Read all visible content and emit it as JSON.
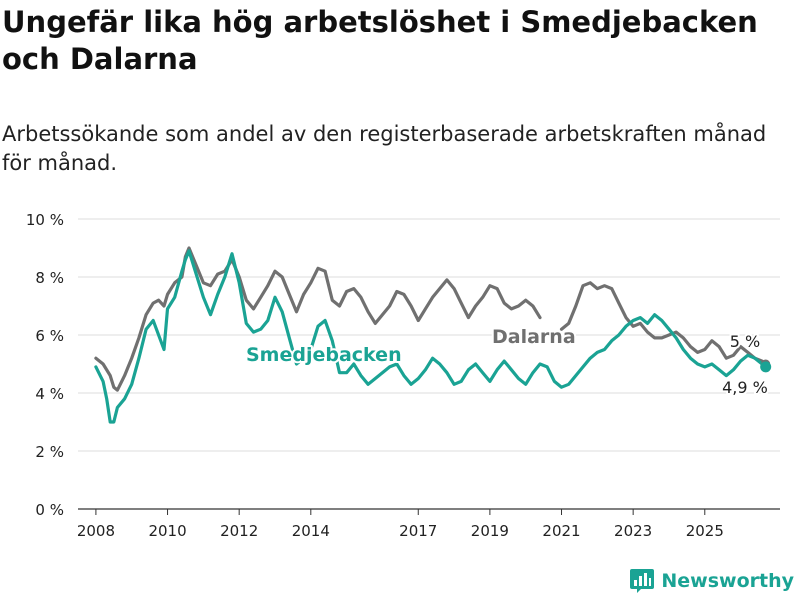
{
  "title": "Ungefär lika hög arbetslöshet i Smedjebacken och Dalarna",
  "subtitle": "Arbetssökande som andel av den registerbaserade arbetskraften månad för månad.",
  "brand": "Newsworthy",
  "colors": {
    "smedjebacken": "#1aa394",
    "dalarna": "#707070",
    "grid": "#dddddd",
    "text": "#222222",
    "brand": "#1aa394"
  },
  "chart_data": {
    "type": "line",
    "title": "Ungefär lika hög arbetslöshet i Smedjebacken och Dalarna",
    "xlabel": "",
    "ylabel": "",
    "ylim": [
      0,
      10
    ],
    "y_ticks": [
      0,
      2,
      4,
      6,
      8,
      10
    ],
    "y_tick_labels": [
      "0 %",
      "2 %",
      "4 %",
      "6 %",
      "8 %",
      "10 %"
    ],
    "x_ticks": [
      2008,
      2010,
      2012,
      2014,
      2017,
      2019,
      2021,
      2023,
      2025
    ],
    "x_tick_labels": [
      "2008",
      "2010",
      "2012",
      "2014",
      "2017",
      "2019",
      "2021",
      "2023",
      "2025"
    ],
    "grid": true,
    "legend": "inline labels",
    "series": [
      {
        "name": "Dalarna",
        "end_label": "5 %",
        "points": [
          [
            2008.0,
            5.2
          ],
          [
            2008.2,
            5.0
          ],
          [
            2008.4,
            4.6
          ],
          [
            2008.5,
            4.2
          ],
          [
            2008.6,
            4.1
          ],
          [
            2008.8,
            4.6
          ],
          [
            2009.0,
            5.2
          ],
          [
            2009.2,
            5.9
          ],
          [
            2009.4,
            6.7
          ],
          [
            2009.6,
            7.1
          ],
          [
            2009.75,
            7.2
          ],
          [
            2009.9,
            7.0
          ],
          [
            2010.0,
            7.4
          ],
          [
            2010.2,
            7.8
          ],
          [
            2010.4,
            8.0
          ],
          [
            2010.5,
            8.7
          ],
          [
            2010.6,
            9.0
          ],
          [
            2010.8,
            8.4
          ],
          [
            2011.0,
            7.8
          ],
          [
            2011.2,
            7.7
          ],
          [
            2011.4,
            8.1
          ],
          [
            2011.6,
            8.2
          ],
          [
            2011.8,
            8.6
          ],
          [
            2012.0,
            8.0
          ],
          [
            2012.2,
            7.2
          ],
          [
            2012.4,
            6.9
          ],
          [
            2012.6,
            7.3
          ],
          [
            2012.8,
            7.7
          ],
          [
            2013.0,
            8.2
          ],
          [
            2013.2,
            8.0
          ],
          [
            2013.4,
            7.4
          ],
          [
            2013.6,
            6.8
          ],
          [
            2013.8,
            7.4
          ],
          [
            2014.0,
            7.8
          ],
          [
            2014.2,
            8.3
          ],
          [
            2014.4,
            8.2
          ],
          [
            2014.6,
            7.2
          ],
          [
            2014.8,
            7.0
          ],
          [
            2015.0,
            7.5
          ],
          [
            2015.2,
            7.6
          ],
          [
            2015.4,
            7.3
          ],
          [
            2015.6,
            6.8
          ],
          [
            2015.8,
            6.4
          ],
          [
            2016.0,
            6.7
          ],
          [
            2016.2,
            7.0
          ],
          [
            2016.4,
            7.5
          ],
          [
            2016.6,
            7.4
          ],
          [
            2016.8,
            7.0
          ],
          [
            2017.0,
            6.5
          ],
          [
            2017.2,
            6.9
          ],
          [
            2017.4,
            7.3
          ],
          [
            2017.6,
            7.6
          ],
          [
            2017.8,
            7.9
          ],
          [
            2018.0,
            7.6
          ],
          [
            2018.2,
            7.1
          ],
          [
            2018.4,
            6.6
          ],
          [
            2018.6,
            7.0
          ],
          [
            2018.8,
            7.3
          ],
          [
            2019.0,
            7.7
          ],
          [
            2019.2,
            7.6
          ],
          [
            2019.4,
            7.1
          ],
          [
            2019.6,
            6.9
          ],
          [
            2019.8,
            7.0
          ],
          [
            2020.0,
            7.2
          ],
          [
            2020.2,
            7.0
          ],
          [
            2020.4,
            6.6
          ]
        ],
        "points_b": [
          [
            2021.0,
            6.2
          ],
          [
            2021.2,
            6.4
          ],
          [
            2021.4,
            7.0
          ],
          [
            2021.6,
            7.7
          ],
          [
            2021.8,
            7.8
          ],
          [
            2022.0,
            7.6
          ],
          [
            2022.2,
            7.7
          ],
          [
            2022.4,
            7.6
          ],
          [
            2022.6,
            7.1
          ],
          [
            2022.8,
            6.6
          ],
          [
            2023.0,
            6.3
          ],
          [
            2023.2,
            6.4
          ],
          [
            2023.4,
            6.1
          ],
          [
            2023.6,
            5.9
          ],
          [
            2023.8,
            5.9
          ],
          [
            2024.0,
            6.0
          ],
          [
            2024.2,
            6.1
          ],
          [
            2024.4,
            5.9
          ],
          [
            2024.6,
            5.6
          ],
          [
            2024.8,
            5.4
          ],
          [
            2025.0,
            5.5
          ],
          [
            2025.2,
            5.8
          ],
          [
            2025.4,
            5.6
          ],
          [
            2025.6,
            5.2
          ],
          [
            2025.8,
            5.3
          ],
          [
            2026.0,
            5.6
          ],
          [
            2026.2,
            5.4
          ],
          [
            2026.4,
            5.2
          ],
          [
            2026.6,
            5.1
          ],
          [
            2026.7,
            5.0
          ]
        ]
      },
      {
        "name": "Smedjebacken",
        "end_label": "4,9 %",
        "points": [
          [
            2008.0,
            4.9
          ],
          [
            2008.2,
            4.4
          ],
          [
            2008.3,
            3.8
          ],
          [
            2008.4,
            3.0
          ],
          [
            2008.5,
            3.0
          ],
          [
            2008.6,
            3.5
          ],
          [
            2008.8,
            3.8
          ],
          [
            2009.0,
            4.3
          ],
          [
            2009.2,
            5.2
          ],
          [
            2009.4,
            6.2
          ],
          [
            2009.6,
            6.5
          ],
          [
            2009.75,
            6.0
          ],
          [
            2009.9,
            5.5
          ],
          [
            2010.0,
            6.9
          ],
          [
            2010.2,
            7.3
          ],
          [
            2010.4,
            8.2
          ],
          [
            2010.5,
            8.6
          ],
          [
            2010.6,
            8.9
          ],
          [
            2010.8,
            8.1
          ],
          [
            2011.0,
            7.3
          ],
          [
            2011.2,
            6.7
          ],
          [
            2011.4,
            7.4
          ],
          [
            2011.6,
            8.0
          ],
          [
            2011.8,
            8.8
          ],
          [
            2012.0,
            7.8
          ],
          [
            2012.2,
            6.4
          ],
          [
            2012.4,
            6.1
          ],
          [
            2012.6,
            6.2
          ],
          [
            2012.8,
            6.5
          ],
          [
            2013.0,
            7.3
          ],
          [
            2013.2,
            6.8
          ],
          [
            2013.4,
            5.9
          ],
          [
            2013.6,
            5.0
          ],
          [
            2013.8,
            5.2
          ],
          [
            2014.0,
            5.5
          ],
          [
            2014.2,
            6.3
          ],
          [
            2014.4,
            6.5
          ],
          [
            2014.6,
            5.8
          ],
          [
            2014.8,
            4.7
          ],
          [
            2015.0,
            4.7
          ],
          [
            2015.2,
            5.0
          ],
          [
            2015.4,
            4.6
          ],
          [
            2015.6,
            4.3
          ],
          [
            2015.8,
            4.5
          ],
          [
            2016.0,
            4.7
          ],
          [
            2016.2,
            4.9
          ],
          [
            2016.4,
            5.0
          ],
          [
            2016.6,
            4.6
          ],
          [
            2016.8,
            4.3
          ],
          [
            2017.0,
            4.5
          ],
          [
            2017.2,
            4.8
          ],
          [
            2017.4,
            5.2
          ],
          [
            2017.6,
            5.0
          ],
          [
            2017.8,
            4.7
          ],
          [
            2018.0,
            4.3
          ],
          [
            2018.2,
            4.4
          ],
          [
            2018.4,
            4.8
          ],
          [
            2018.6,
            5.0
          ],
          [
            2018.8,
            4.7
          ],
          [
            2019.0,
            4.4
          ],
          [
            2019.2,
            4.8
          ],
          [
            2019.4,
            5.1
          ],
          [
            2019.6,
            4.8
          ],
          [
            2019.8,
            4.5
          ],
          [
            2020.0,
            4.3
          ],
          [
            2020.2,
            4.7
          ],
          [
            2020.4,
            5.0
          ],
          [
            2020.6,
            4.9
          ],
          [
            2020.8,
            4.4
          ],
          [
            2021.0,
            4.2
          ],
          [
            2021.2,
            4.3
          ],
          [
            2021.4,
            4.6
          ],
          [
            2021.6,
            4.9
          ],
          [
            2021.8,
            5.2
          ],
          [
            2022.0,
            5.4
          ],
          [
            2022.2,
            5.5
          ],
          [
            2022.4,
            5.8
          ],
          [
            2022.6,
            6.0
          ],
          [
            2022.8,
            6.3
          ],
          [
            2023.0,
            6.5
          ],
          [
            2023.2,
            6.6
          ],
          [
            2023.4,
            6.4
          ],
          [
            2023.6,
            6.7
          ],
          [
            2023.8,
            6.5
          ],
          [
            2024.0,
            6.2
          ],
          [
            2024.2,
            5.9
          ],
          [
            2024.4,
            5.5
          ],
          [
            2024.6,
            5.2
          ],
          [
            2024.8,
            5.0
          ],
          [
            2025.0,
            4.9
          ],
          [
            2025.2,
            5.0
          ],
          [
            2025.4,
            4.8
          ],
          [
            2025.6,
            4.6
          ],
          [
            2025.8,
            4.8
          ],
          [
            2026.0,
            5.1
          ],
          [
            2026.2,
            5.3
          ],
          [
            2026.4,
            5.2
          ],
          [
            2026.6,
            5.0
          ],
          [
            2026.7,
            4.9
          ]
        ]
      }
    ]
  }
}
